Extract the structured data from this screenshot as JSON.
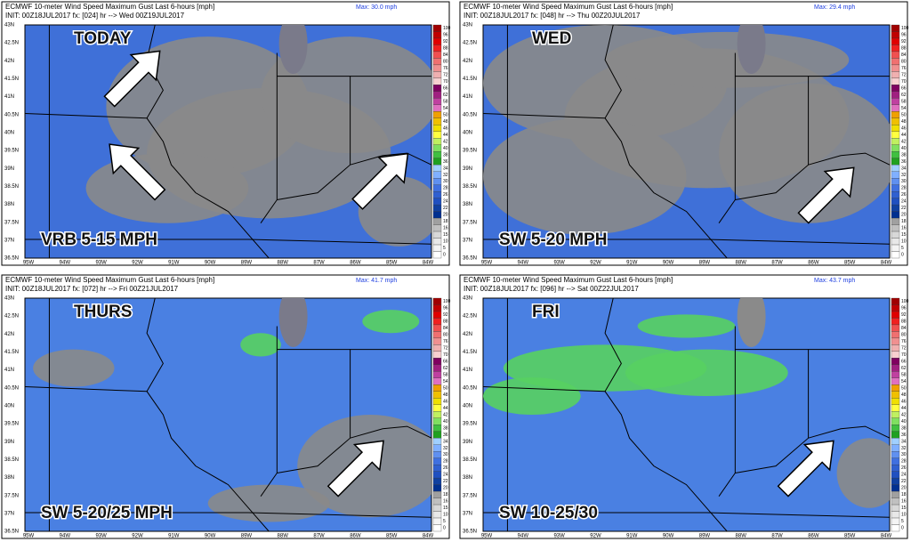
{
  "header_title": "ECMWF 10-meter Wind Speed Maximum Gust Last 6-hours [mph]",
  "panels": [
    {
      "max": "Max: 30.0 mph",
      "init": "INIT: 00Z18JUL2017 fx: [024] hr --> Wed 00Z19JUL2017",
      "day": "TODAY",
      "wind": "VRB 5-15 MPH"
    },
    {
      "max": "Max: 29.4 mph",
      "init": "INIT: 00Z18JUL2017 fx: [048] hr --> Thu 00Z20JUL2017",
      "day": "WED",
      "wind": "SW 5-20 MPH"
    },
    {
      "max": "Max: 41.7 mph",
      "init": "INIT: 00Z18JUL2017 fx: [072] hr --> Fri 00Z21JUL2017",
      "day": "THURS",
      "wind": "SW 5-20/25 MPH"
    },
    {
      "max": "Max: 43.7 mph",
      "init": "INIT: 00Z18JUL2017 fx: [096] hr --> Sat 00Z22JUL2017",
      "day": "FRI",
      "wind": "SW 10-25/30"
    }
  ],
  "lat_labels": [
    "43N",
    "42.5N",
    "42N",
    "41.5N",
    "41N",
    "40.5N",
    "40N",
    "39.5N",
    "39N",
    "38.5N",
    "38N",
    "37.5N",
    "37N",
    "36.5N"
  ],
  "lon_labels": [
    "95W",
    "94W",
    "93W",
    "92W",
    "91W",
    "90W",
    "89W",
    "88W",
    "87W",
    "86W",
    "85W",
    "84W"
  ],
  "colorbar_labels": [
    "100",
    "96",
    "92",
    "88",
    "84",
    "80",
    "76",
    "72",
    "70",
    "66",
    "62",
    "58",
    "54",
    "50",
    "48",
    "46",
    "44",
    "42",
    "40",
    "38",
    "36",
    "34",
    "32",
    "30",
    "28",
    "26",
    "24",
    "22",
    "20",
    "18",
    "16",
    "15",
    "10",
    "5",
    "0"
  ]
}
